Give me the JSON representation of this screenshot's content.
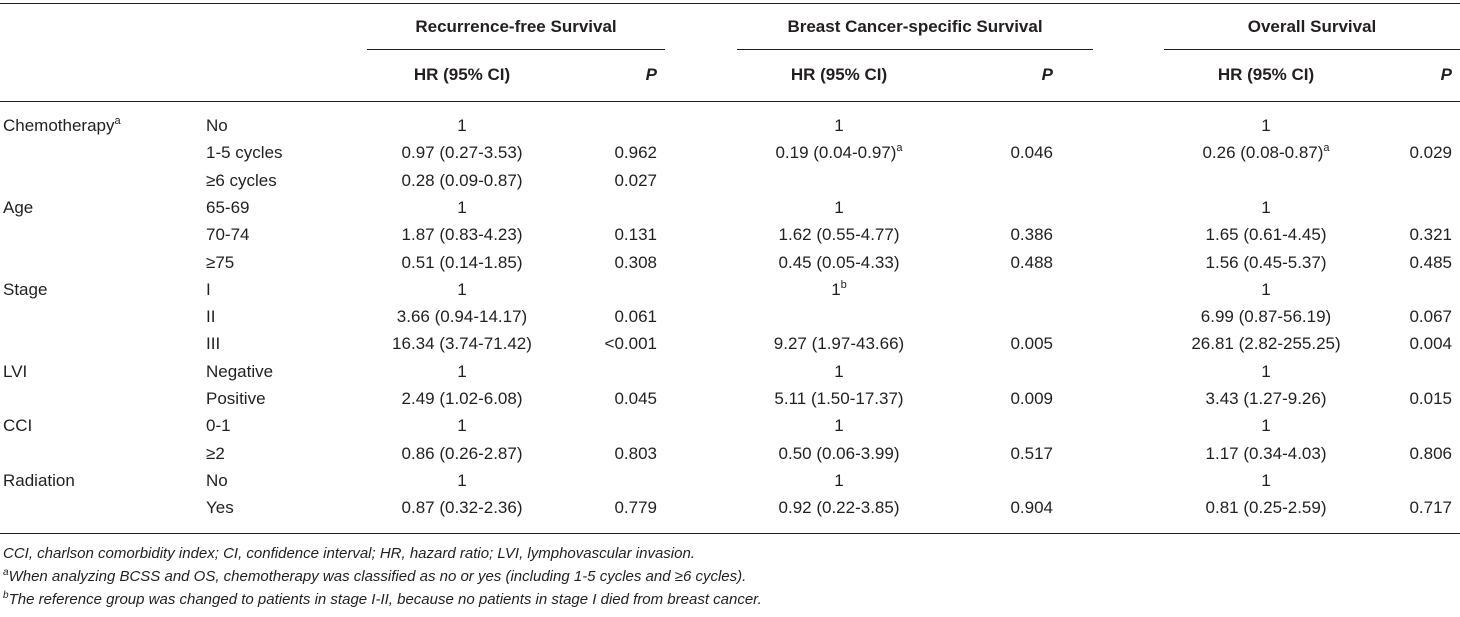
{
  "groups": [
    {
      "title": "Recurrence-free Survival",
      "hr_label": "HR (95% CI)",
      "p_label": "P"
    },
    {
      "title": "Breast Cancer-specific Survival",
      "hr_label": "HR (95% CI)",
      "p_label": "P"
    },
    {
      "title": "Overall Survival",
      "hr_label": "HR (95% CI)",
      "p_label": "P"
    }
  ],
  "rows": [
    {
      "variable": "Chemotherapy",
      "var_sup": "a",
      "level": "No",
      "cells": [
        [
          "1",
          ""
        ],
        [
          "1",
          ""
        ],
        [
          "1",
          ""
        ]
      ],
      "sups": [
        "",
        "",
        ""
      ]
    },
    {
      "variable": "",
      "var_sup": "",
      "level": "1-5 cycles",
      "cells": [
        [
          "0.97 (0.27-3.53)",
          "0.962"
        ],
        [
          "0.19 (0.04-0.97)",
          "0.046"
        ],
        [
          "0.26 (0.08-0.87)",
          "0.029"
        ]
      ],
      "sups": [
        "",
        "a",
        "a"
      ]
    },
    {
      "variable": "",
      "var_sup": "",
      "level": "≥6 cycles",
      "cells": [
        [
          "0.28 (0.09-0.87)",
          "0.027"
        ],
        [
          "",
          ""
        ],
        [
          "",
          ""
        ]
      ],
      "sups": [
        "",
        "",
        ""
      ]
    },
    {
      "variable": "Age",
      "var_sup": "",
      "level": "65-69",
      "cells": [
        [
          "1",
          ""
        ],
        [
          "1",
          ""
        ],
        [
          "1",
          ""
        ]
      ],
      "sups": [
        "",
        "",
        ""
      ]
    },
    {
      "variable": "",
      "var_sup": "",
      "level": "70-74",
      "cells": [
        [
          "1.87 (0.83-4.23)",
          "0.131"
        ],
        [
          "1.62 (0.55-4.77)",
          "0.386"
        ],
        [
          "1.65 (0.61-4.45)",
          "0.321"
        ]
      ],
      "sups": [
        "",
        "",
        ""
      ]
    },
    {
      "variable": "",
      "var_sup": "",
      "level": "≥75",
      "cells": [
        [
          "0.51 (0.14-1.85)",
          "0.308"
        ],
        [
          "0.45 (0.05-4.33)",
          "0.488"
        ],
        [
          "1.56 (0.45-5.37)",
          "0.485"
        ]
      ],
      "sups": [
        "",
        "",
        ""
      ]
    },
    {
      "variable": "Stage",
      "var_sup": "",
      "level": "I",
      "cells": [
        [
          "1",
          ""
        ],
        [
          "1",
          ""
        ],
        [
          "1",
          ""
        ]
      ],
      "sups": [
        "",
        "b",
        ""
      ]
    },
    {
      "variable": "",
      "var_sup": "",
      "level": "II",
      "cells": [
        [
          "3.66 (0.94-14.17)",
          "0.061"
        ],
        [
          "",
          ""
        ],
        [
          "6.99 (0.87-56.19)",
          "0.067"
        ]
      ],
      "sups": [
        "",
        "",
        ""
      ]
    },
    {
      "variable": "",
      "var_sup": "",
      "level": "III",
      "cells": [
        [
          "16.34 (3.74-71.42)",
          "<0.001"
        ],
        [
          "9.27 (1.97-43.66)",
          "0.005"
        ],
        [
          "26.81 (2.82-255.25)",
          "0.004"
        ]
      ],
      "sups": [
        "",
        "",
        ""
      ]
    },
    {
      "variable": "LVI",
      "var_sup": "",
      "level": "Negative",
      "cells": [
        [
          "1",
          ""
        ],
        [
          "1",
          ""
        ],
        [
          "1",
          ""
        ]
      ],
      "sups": [
        "",
        "",
        ""
      ]
    },
    {
      "variable": "",
      "var_sup": "",
      "level": "Positive",
      "cells": [
        [
          "2.49 (1.02-6.08)",
          "0.045"
        ],
        [
          "5.11 (1.50-17.37)",
          "0.009"
        ],
        [
          "3.43 (1.27-9.26)",
          "0.015"
        ]
      ],
      "sups": [
        "",
        "",
        ""
      ]
    },
    {
      "variable": "CCI",
      "var_sup": "",
      "level": "0-1",
      "cells": [
        [
          "1",
          ""
        ],
        [
          "1",
          ""
        ],
        [
          "1",
          ""
        ]
      ],
      "sups": [
        "",
        "",
        ""
      ]
    },
    {
      "variable": "",
      "var_sup": "",
      "level": "≥2",
      "cells": [
        [
          "0.86 (0.26-2.87)",
          "0.803"
        ],
        [
          "0.50 (0.06-3.99)",
          "0.517"
        ],
        [
          "1.17 (0.34-4.03)",
          "0.806"
        ]
      ],
      "sups": [
        "",
        "",
        ""
      ]
    },
    {
      "variable": "Radiation",
      "var_sup": "",
      "level": "No",
      "cells": [
        [
          "1",
          ""
        ],
        [
          "1",
          ""
        ],
        [
          "1",
          ""
        ]
      ],
      "sups": [
        "",
        "",
        ""
      ]
    },
    {
      "variable": "",
      "var_sup": "",
      "level": "Yes",
      "cells": [
        [
          "0.87 (0.32-2.36)",
          "0.779"
        ],
        [
          "0.92 (0.22-3.85)",
          "0.904"
        ],
        [
          "0.81 (0.25-2.59)",
          "0.717"
        ]
      ],
      "sups": [
        "",
        "",
        ""
      ]
    }
  ],
  "footnotes": {
    "abbrev": "CCI, charlson comorbidity index; CI, confidence interval; HR, hazard ratio; LVI, lymphovascular invasion.",
    "a_mark": "a",
    "a_text": "When analyzing BCSS and OS, chemotherapy was classified as no or yes (including 1-5 cycles and ≥6 cycles).",
    "b_mark": "b",
    "b_text": "The reference group was changed to patients in stage I-II, because no patients in stage I died from breast cancer."
  }
}
